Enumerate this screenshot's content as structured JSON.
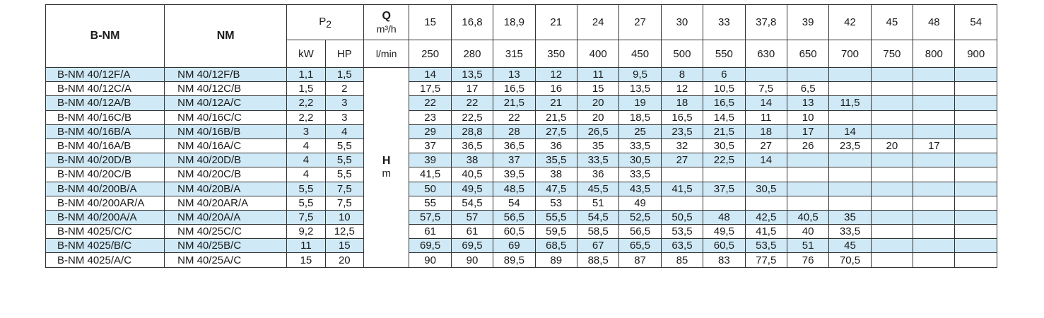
{
  "headers": {
    "model_bnm": "B-NM",
    "model_nm": "NM",
    "p2": "P",
    "p2_sub": "2",
    "kw": "kW",
    "hp": "HP",
    "q_label": "Q",
    "q_unit_m3h": "m³/h",
    "q_unit_lmin": "l/min",
    "h_label": "H",
    "h_unit": "m"
  },
  "flow_m3h": [
    "15",
    "16,8",
    "18,9",
    "21",
    "24",
    "27",
    "30",
    "33",
    "37,8",
    "39",
    "42",
    "45",
    "48",
    "54"
  ],
  "flow_lmin": [
    "250",
    "280",
    "315",
    "350",
    "400",
    "450",
    "500",
    "550",
    "630",
    "650",
    "700",
    "750",
    "800",
    "900"
  ],
  "rows": [
    {
      "bnm": "B-NM 40/12F/A",
      "nm": "NM 40/12F/B",
      "kw": "1,1",
      "hp": "1,5",
      "h": [
        "14",
        "13,5",
        "13",
        "12",
        "11",
        "9,5",
        "8",
        "6",
        "",
        "",
        "",
        "",
        "",
        ""
      ]
    },
    {
      "bnm": "B-NM 40/12C/A",
      "nm": "NM 40/12C/B",
      "kw": "1,5",
      "hp": "2",
      "h": [
        "17,5",
        "17",
        "16,5",
        "16",
        "15",
        "13,5",
        "12",
        "10,5",
        "7,5",
        "6,5",
        "",
        "",
        "",
        ""
      ]
    },
    {
      "bnm": "B-NM 40/12A/B",
      "nm": "NM 40/12A/C",
      "kw": "2,2",
      "hp": "3",
      "h": [
        "22",
        "22",
        "21,5",
        "21",
        "20",
        "19",
        "18",
        "16,5",
        "14",
        "13",
        "11,5",
        "",
        "",
        ""
      ]
    },
    {
      "bnm": "B-NM 40/16C/B",
      "nm": "NM 40/16C/C",
      "kw": "2,2",
      "hp": "3",
      "h": [
        "23",
        "22,5",
        "22",
        "21,5",
        "20",
        "18,5",
        "16,5",
        "14,5",
        "11",
        "10",
        "",
        "",
        "",
        ""
      ]
    },
    {
      "bnm": "B-NM 40/16B/A",
      "nm": "NM 40/16B/B",
      "kw": "3",
      "hp": "4",
      "h": [
        "29",
        "28,8",
        "28",
        "27,5",
        "26,5",
        "25",
        "23,5",
        "21,5",
        "18",
        "17",
        "14",
        "",
        "",
        ""
      ]
    },
    {
      "bnm": "B-NM 40/16A/B",
      "nm": "NM 40/16A/C",
      "kw": "4",
      "hp": "5,5",
      "h": [
        "37",
        "36,5",
        "36,5",
        "36",
        "35",
        "33,5",
        "32",
        "30,5",
        "27",
        "26",
        "23,5",
        "20",
        "17",
        ""
      ]
    },
    {
      "bnm": "B-NM 40/20D/B",
      "nm": "NM 40/20D/B",
      "kw": "4",
      "hp": "5,5",
      "h": [
        "39",
        "38",
        "37",
        "35,5",
        "33,5",
        "30,5",
        "27",
        "22,5",
        "14",
        "",
        "",
        "",
        "",
        ""
      ]
    },
    {
      "bnm": "B-NM 40/20C/B",
      "nm": "NM 40/20C/B",
      "kw": "4",
      "hp": "5,5",
      "h": [
        "41,5",
        "40,5",
        "39,5",
        "38",
        "36",
        "33,5",
        "",
        "",
        "",
        "",
        "",
        "",
        "",
        ""
      ]
    },
    {
      "bnm": "B-NM 40/200B/A",
      "nm": "NM 40/20B/A",
      "kw": "5,5",
      "hp": "7,5",
      "h": [
        "50",
        "49,5",
        "48,5",
        "47,5",
        "45,5",
        "43,5",
        "41,5",
        "37,5",
        "30,5",
        "",
        "",
        "",
        "",
        ""
      ]
    },
    {
      "bnm": "B-NM 40/200AR/A",
      "nm": "NM 40/20AR/A",
      "kw": "5,5",
      "hp": "7,5",
      "h": [
        "55",
        "54,5",
        "54",
        "53",
        "51",
        "49",
        "",
        "",
        "",
        "",
        "",
        "",
        "",
        ""
      ]
    },
    {
      "bnm": "B-NM 40/200A/A",
      "nm": "NM 40/20A/A",
      "kw": "7,5",
      "hp": "10",
      "h": [
        "57,5",
        "57",
        "56,5",
        "55,5",
        "54,5",
        "52,5",
        "50,5",
        "48",
        "42,5",
        "40,5",
        "35",
        "",
        "",
        ""
      ]
    },
    {
      "bnm": "B-NM 4025/C/C",
      "nm": "NM 40/25C/C",
      "kw": "9,2",
      "hp": "12,5",
      "h": [
        "61",
        "61",
        "60,5",
        "59,5",
        "58,5",
        "56,5",
        "53,5",
        "49,5",
        "41,5",
        "40",
        "33,5",
        "",
        "",
        ""
      ]
    },
    {
      "bnm": "B-NM 4025/B/C",
      "nm": "NM 40/25B/C",
      "kw": "11",
      "hp": "15",
      "h": [
        "69,5",
        "69,5",
        "69",
        "68,5",
        "67",
        "65,5",
        "63,5",
        "60,5",
        "53,5",
        "51",
        "45",
        "",
        "",
        ""
      ]
    },
    {
      "bnm": "B-NM 4025/A/C",
      "nm": "NM 40/25A/C",
      "kw": "15",
      "hp": "20",
      "h": [
        "90",
        "90",
        "89,5",
        "89",
        "88,5",
        "87",
        "85",
        "83",
        "77,5",
        "76",
        "70,5",
        "",
        "",
        ""
      ]
    }
  ]
}
